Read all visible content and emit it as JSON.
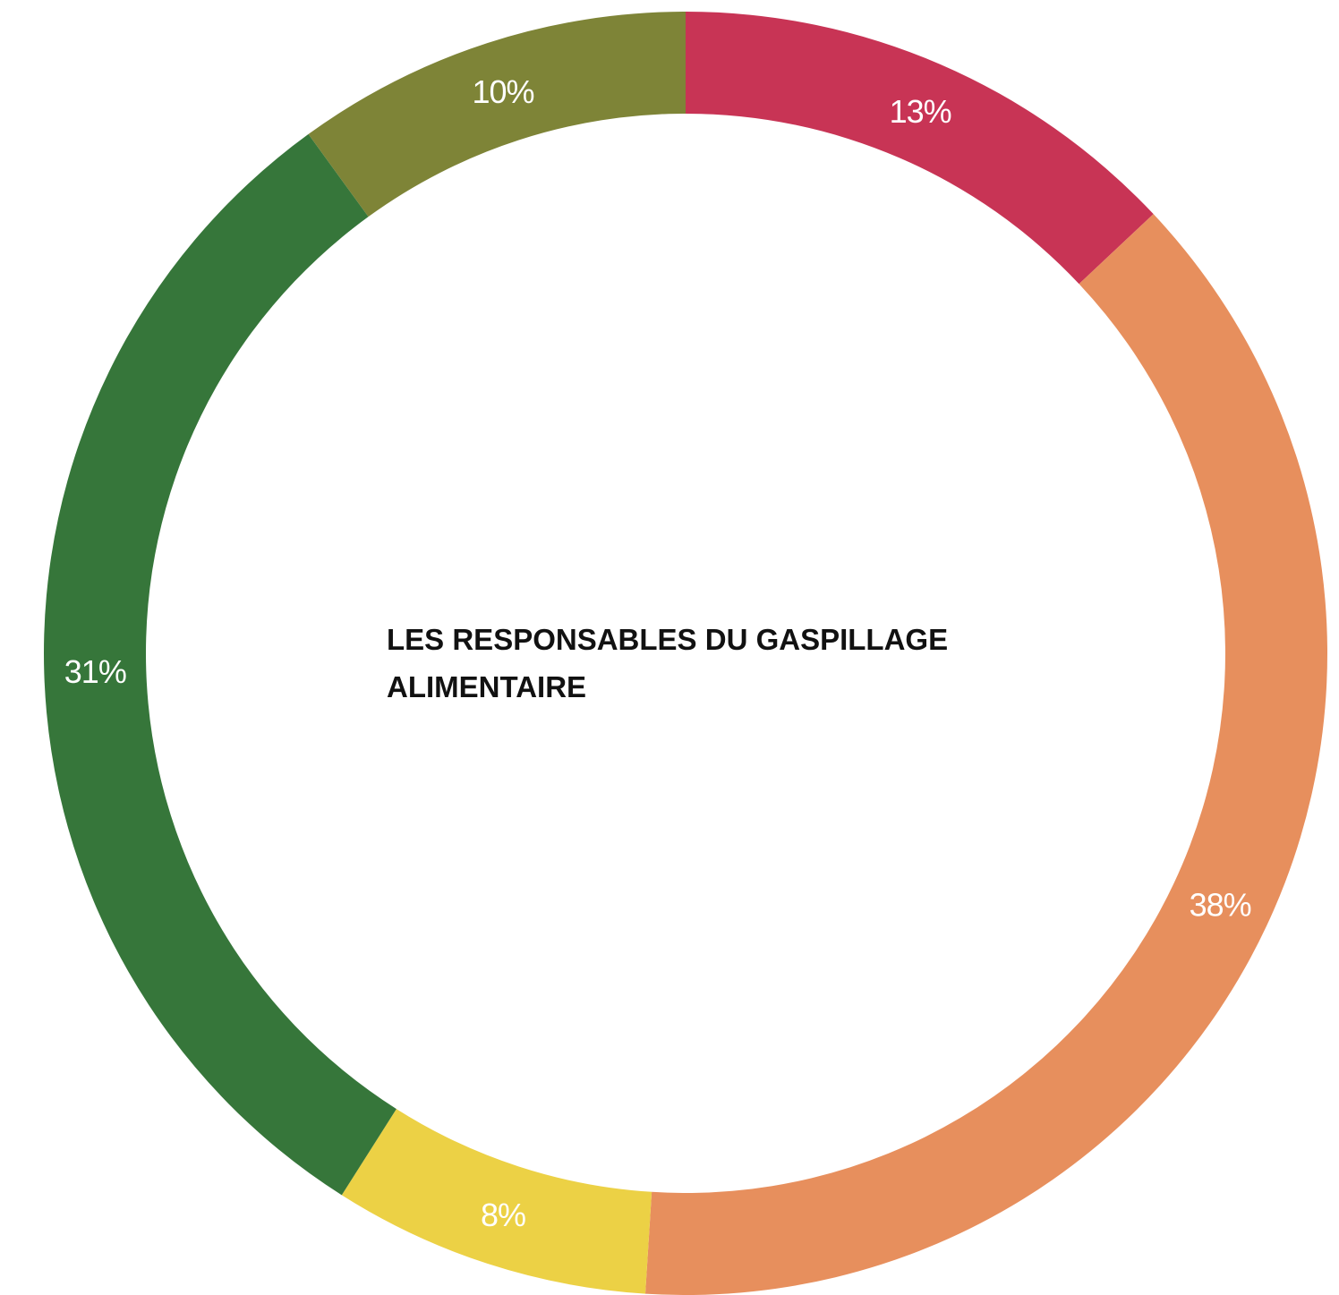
{
  "chart_data": {
    "type": "pie",
    "variant": "donut",
    "title_lines": [
      "LES RESPONSABLES DU GASPILLAGE",
      "ALIMENTAIRE"
    ],
    "slices": [
      {
        "label": "13%",
        "value": 13,
        "color": "#c83455"
      },
      {
        "label": "38%",
        "value": 38,
        "color": "#e78f5d"
      },
      {
        "label": "8%",
        "value": 8,
        "color": "#ecd145"
      },
      {
        "label": "31%",
        "value": 31,
        "color": "#36763a"
      },
      {
        "label": "10%",
        "value": 10,
        "color": "#7e8437"
      }
    ],
    "start": "12 o'clock",
    "direction": "clockwise",
    "legend": "none"
  }
}
